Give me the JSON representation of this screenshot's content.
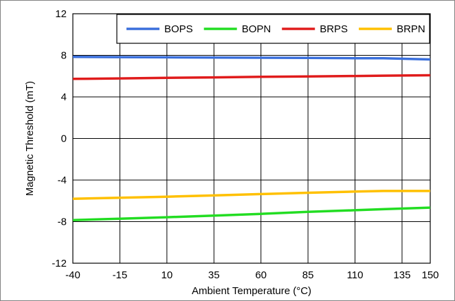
{
  "chart_data": {
    "type": "line",
    "xlabel": "Ambient Temperature (°C)",
    "ylabel": "Magnetic Threshold (mT)",
    "xlim": [
      -40,
      150
    ],
    "ylim": [
      -12,
      12
    ],
    "x_ticks": [
      -40,
      -15,
      10,
      35,
      60,
      85,
      110,
      135,
      150
    ],
    "x_tick_labels": [
      "-40",
      "-15",
      "10",
      "35",
      "60",
      "85",
      "110",
      "135",
      "150"
    ],
    "y_ticks": [
      -12,
      -8,
      -4,
      0,
      4,
      8,
      12
    ],
    "y_tick_labels": [
      "-12",
      "-8",
      "-4",
      "0",
      "4",
      "8",
      "12"
    ],
    "grid": true,
    "legend_position": "top-right",
    "x": [
      -40,
      -15,
      10,
      35,
      60,
      85,
      110,
      125,
      150
    ],
    "series": [
      {
        "name": "BOPS",
        "color": "#3a6fdc",
        "values": [
          7.85,
          7.83,
          7.81,
          7.79,
          7.77,
          7.75,
          7.72,
          7.72,
          7.6
        ]
      },
      {
        "name": "BOPN",
        "color": "#22dd22",
        "values": [
          -7.85,
          -7.72,
          -7.58,
          -7.42,
          -7.25,
          -7.06,
          -6.9,
          -6.8,
          -6.65
        ]
      },
      {
        "name": "BRPS",
        "color": "#e01b1b",
        "values": [
          5.73,
          5.78,
          5.83,
          5.88,
          5.93,
          5.97,
          6.01,
          6.04,
          6.08
        ]
      },
      {
        "name": "BRPN",
        "color": "#ffc000",
        "values": [
          -5.8,
          -5.7,
          -5.6,
          -5.48,
          -5.35,
          -5.22,
          -5.11,
          -5.05,
          -5.05
        ]
      }
    ]
  }
}
